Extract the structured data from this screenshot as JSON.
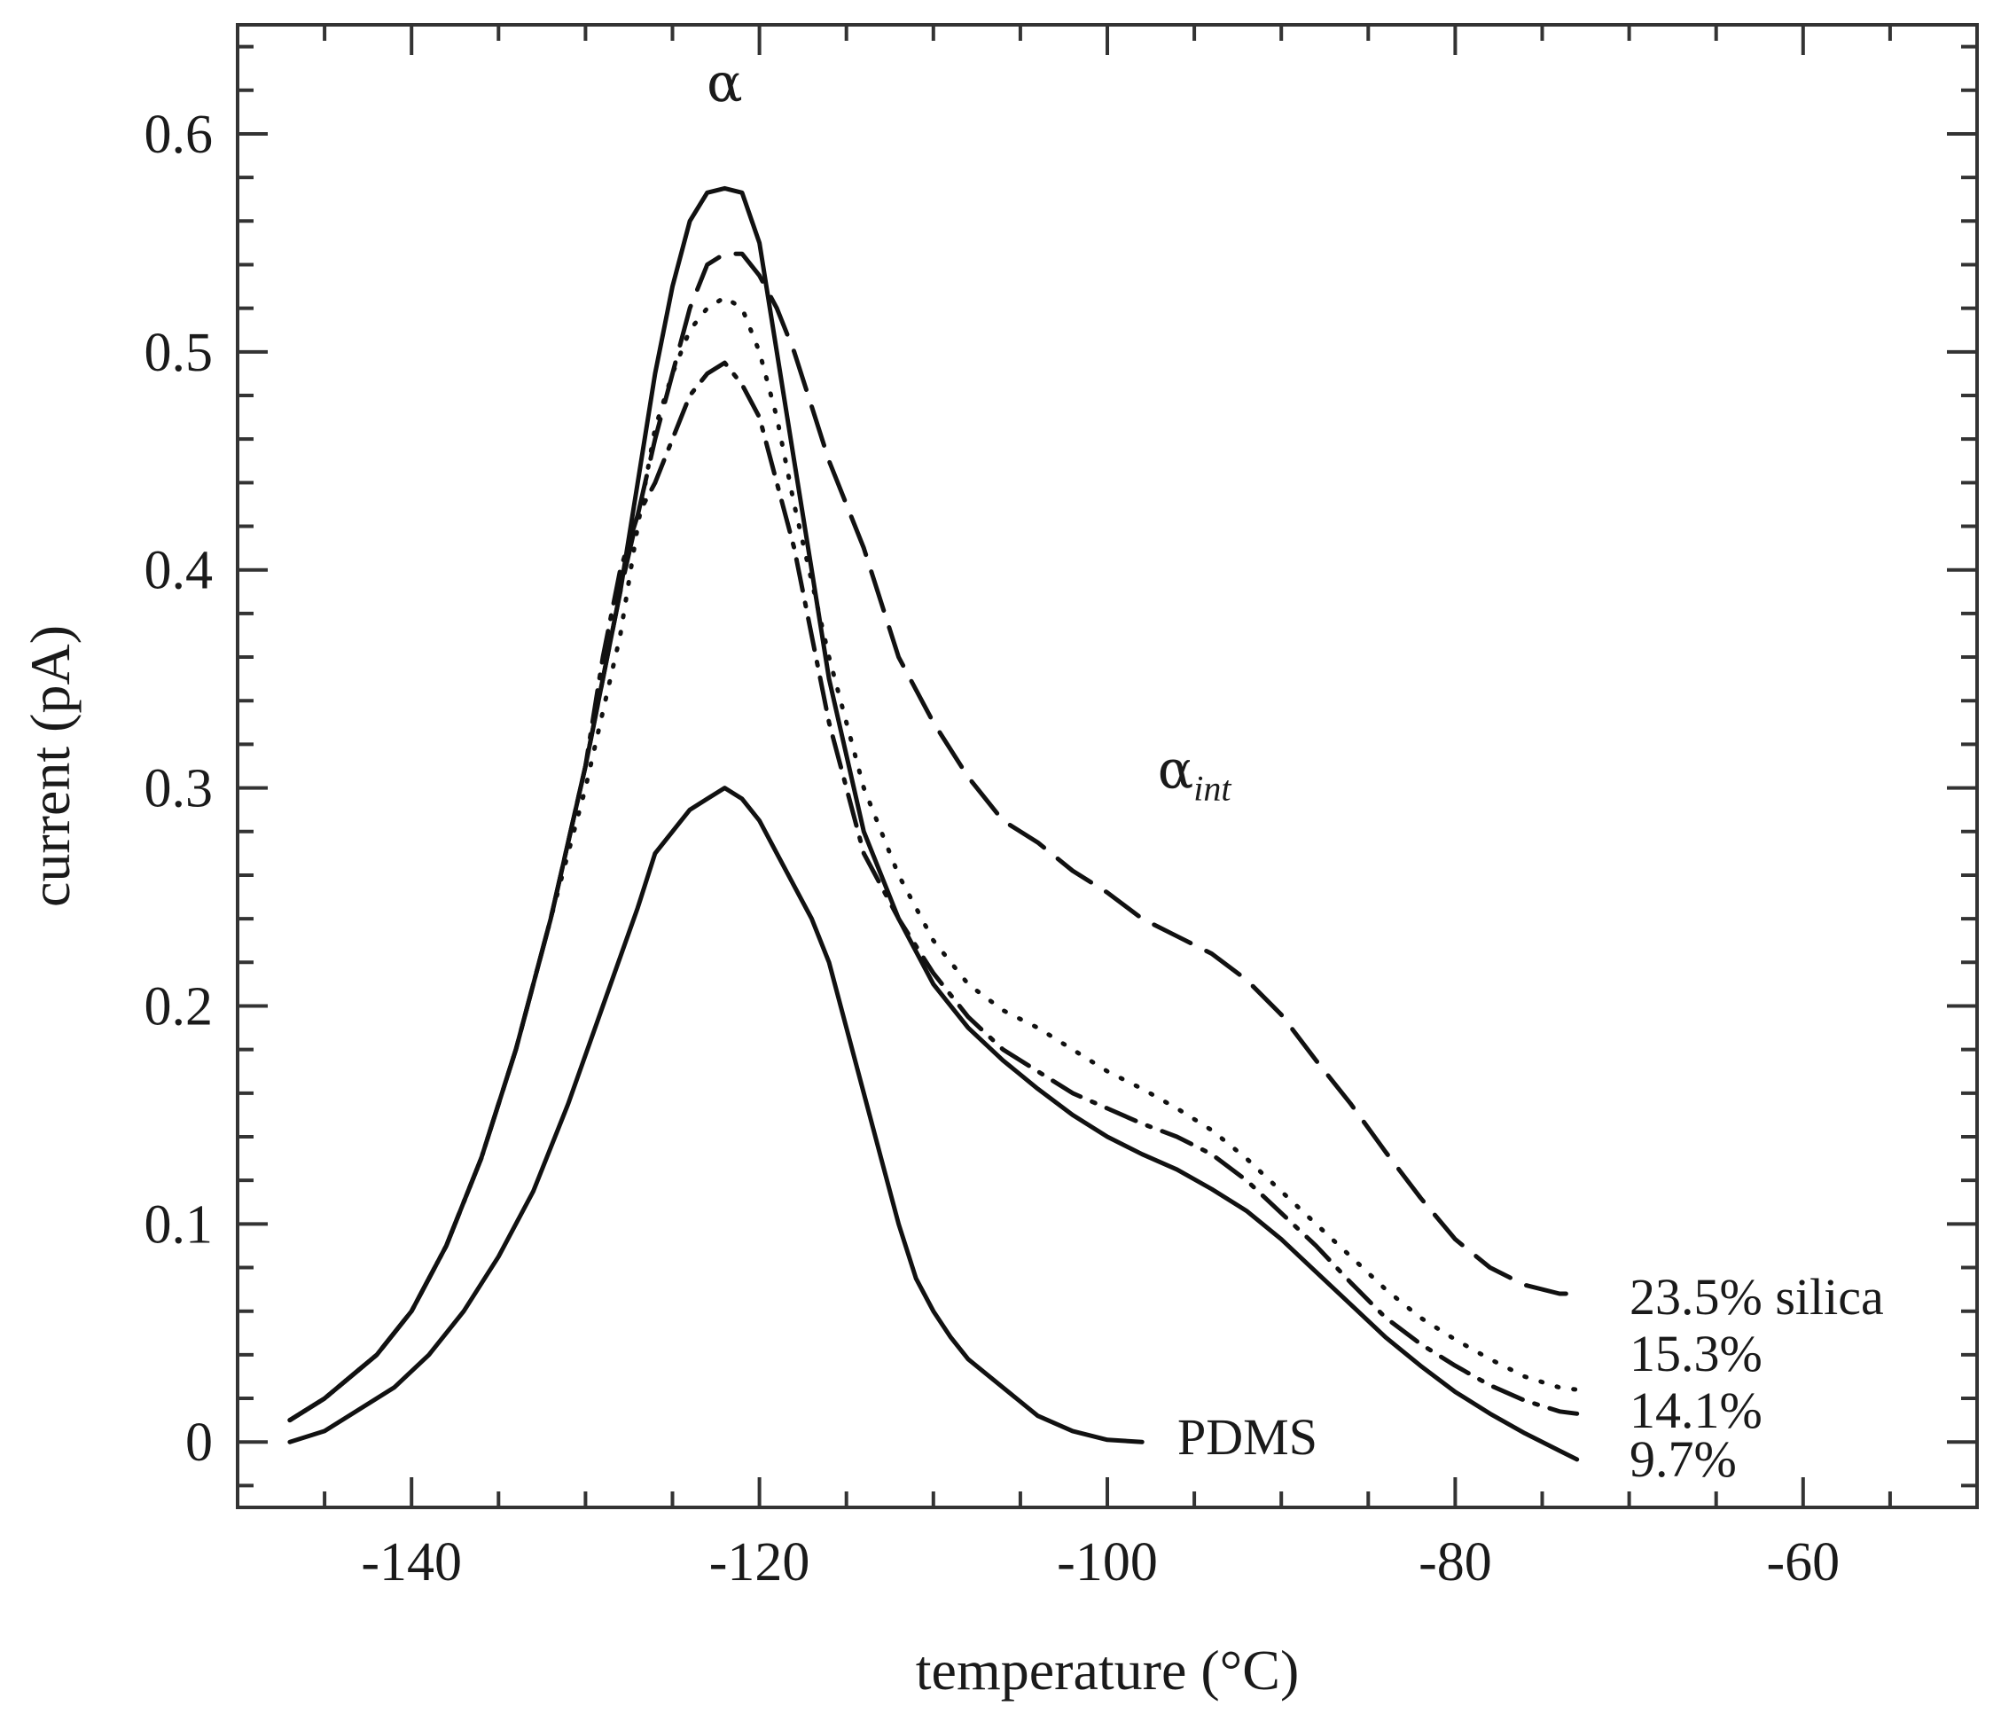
{
  "chart_data": {
    "type": "line",
    "xlabel": "temperature (°C)",
    "ylabel": "current (pA)",
    "xlim": [
      -150,
      -50
    ],
    "ylim": [
      -0.03,
      0.65
    ],
    "xticks": [
      -140,
      -120,
      -100,
      -80,
      -60
    ],
    "xtick_labels": [
      "-140",
      "-120",
      "-100",
      "-80",
      "-60"
    ],
    "yticks": [
      0,
      0.1,
      0.2,
      0.3,
      0.4,
      0.5,
      0.6
    ],
    "ytick_labels": [
      "0",
      "0.1",
      "0.2",
      "0.3",
      "0.4",
      "0.5",
      "0.6"
    ],
    "grid": false,
    "legend": "none (curves labeled at their right ends)",
    "annotations": [
      {
        "text": "α",
        "x": -122,
        "y": 0.615
      },
      {
        "text": "α",
        "subscript": "int",
        "x": -95,
        "y": 0.3
      }
    ],
    "series": [
      {
        "name": "23.5% silica",
        "style": "long-dash",
        "x": [
          -147,
          -145,
          -142,
          -140,
          -138,
          -136,
          -134,
          -132,
          -130,
          -128,
          -126,
          -124,
          -123,
          -122,
          -121,
          -120,
          -119,
          -118,
          -117,
          -116,
          -114,
          -112,
          -110,
          -108,
          -106,
          -104,
          -102,
          -100,
          -98,
          -96,
          -94,
          -92,
          -90,
          -88,
          -86,
          -84,
          -82,
          -80,
          -78,
          -76,
          -74,
          -73
        ],
        "y": [
          0.01,
          0.02,
          0.04,
          0.06,
          0.09,
          0.13,
          0.18,
          0.24,
          0.31,
          0.39,
          0.46,
          0.52,
          0.54,
          0.545,
          0.545,
          0.535,
          0.52,
          0.5,
          0.475,
          0.45,
          0.41,
          0.36,
          0.33,
          0.305,
          0.285,
          0.275,
          0.262,
          0.252,
          0.24,
          0.232,
          0.224,
          0.212,
          0.196,
          0.175,
          0.155,
          0.133,
          0.112,
          0.093,
          0.08,
          0.072,
          0.068,
          0.068
        ]
      },
      {
        "name": "15.3%",
        "style": "dotted",
        "x": [
          -147,
          -145,
          -142,
          -140,
          -138,
          -136,
          -134,
          -132,
          -130,
          -128,
          -127,
          -126,
          -125,
          -124,
          -123,
          -122,
          -121,
          -120,
          -119,
          -118,
          -116,
          -114,
          -112,
          -110,
          -108,
          -106,
          -104,
          -102,
          -100,
          -98,
          -96,
          -94,
          -92,
          -90,
          -88,
          -86,
          -84,
          -82,
          -80,
          -78,
          -76,
          -74,
          -73
        ],
        "y": [
          0.01,
          0.02,
          0.04,
          0.06,
          0.09,
          0.13,
          0.18,
          0.24,
          0.3,
          0.37,
          0.42,
          0.465,
          0.49,
          0.51,
          0.52,
          0.525,
          0.52,
          0.5,
          0.47,
          0.43,
          0.36,
          0.3,
          0.26,
          0.23,
          0.21,
          0.198,
          0.19,
          0.18,
          0.17,
          0.162,
          0.153,
          0.143,
          0.13,
          0.115,
          0.1,
          0.085,
          0.07,
          0.057,
          0.047,
          0.038,
          0.03,
          0.025,
          0.024
        ]
      },
      {
        "name": "14.1%",
        "style": "dash-dot",
        "x": [
          -147,
          -145,
          -142,
          -140,
          -138,
          -136,
          -134,
          -132,
          -130,
          -129,
          -128,
          -127,
          -126,
          -125,
          -124,
          -123,
          -122,
          -121,
          -120,
          -119,
          -118,
          -116,
          -114,
          -112,
          -110,
          -108,
          -106,
          -104,
          -102,
          -100,
          -98,
          -96,
          -94,
          -92,
          -90,
          -88,
          -86,
          -84,
          -82,
          -80,
          -78,
          -76,
          -74,
          -73
        ],
        "y": [
          0.01,
          0.02,
          0.04,
          0.06,
          0.09,
          0.13,
          0.18,
          0.24,
          0.31,
          0.36,
          0.4,
          0.425,
          0.44,
          0.46,
          0.48,
          0.49,
          0.495,
          0.485,
          0.47,
          0.44,
          0.41,
          0.33,
          0.27,
          0.24,
          0.215,
          0.195,
          0.18,
          0.17,
          0.16,
          0.153,
          0.146,
          0.14,
          0.132,
          0.12,
          0.105,
          0.09,
          0.073,
          0.057,
          0.045,
          0.035,
          0.026,
          0.019,
          0.014,
          0.013
        ]
      },
      {
        "name": "9.7%",
        "style": "solid",
        "x": [
          -147,
          -145,
          -142,
          -140,
          -138,
          -136,
          -134,
          -132,
          -130,
          -128,
          -127,
          -126,
          -125,
          -124,
          -123,
          -122,
          -121,
          -120,
          -119,
          -118,
          -117,
          -116,
          -114,
          -112,
          -110,
          -108,
          -106,
          -104,
          -102,
          -100,
          -98,
          -96,
          -94,
          -92,
          -90,
          -88,
          -86,
          -84,
          -82,
          -80,
          -78,
          -76,
          -74,
          -73
        ],
        "y": [
          0.01,
          0.02,
          0.04,
          0.06,
          0.09,
          0.13,
          0.18,
          0.24,
          0.31,
          0.39,
          0.44,
          0.49,
          0.53,
          0.56,
          0.573,
          0.575,
          0.573,
          0.55,
          0.5,
          0.45,
          0.4,
          0.35,
          0.28,
          0.24,
          0.21,
          0.19,
          0.175,
          0.162,
          0.15,
          0.14,
          0.132,
          0.125,
          0.116,
          0.106,
          0.093,
          0.078,
          0.063,
          0.048,
          0.035,
          0.023,
          0.013,
          0.004,
          -0.004,
          -0.008
        ]
      },
      {
        "name": "PDMS",
        "style": "solid",
        "x": [
          -147,
          -145,
          -143,
          -141,
          -139,
          -137,
          -135,
          -133,
          -131,
          -129,
          -127,
          -126,
          -125,
          -124,
          -123,
          -122,
          -121,
          -120,
          -119,
          -118,
          -117,
          -116,
          -115,
          -114,
          -113,
          -112,
          -111,
          -110,
          -109,
          -108,
          -106,
          -104,
          -102,
          -100,
          -98
        ],
        "y": [
          0.0,
          0.005,
          0.015,
          0.025,
          0.04,
          0.06,
          0.085,
          0.115,
          0.155,
          0.2,
          0.245,
          0.27,
          0.28,
          0.29,
          0.295,
          0.3,
          0.295,
          0.285,
          0.27,
          0.255,
          0.24,
          0.22,
          0.19,
          0.16,
          0.13,
          0.1,
          0.075,
          0.06,
          0.048,
          0.038,
          0.025,
          0.012,
          0.005,
          0.001,
          0.0
        ]
      }
    ]
  }
}
